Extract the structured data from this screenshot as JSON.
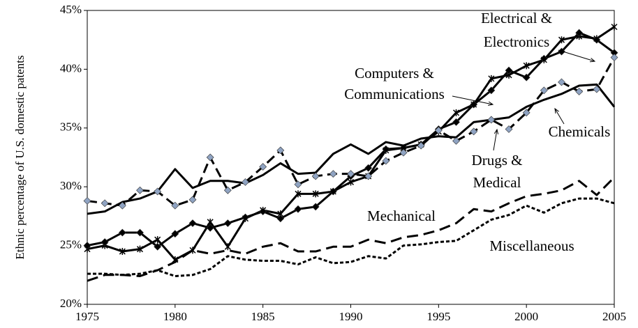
{
  "chart_data": {
    "type": "line",
    "y_label": "Ethnic percentage of U.S. domestic patents",
    "x": [
      1975,
      1976,
      1977,
      1978,
      1979,
      1980,
      1981,
      1982,
      1983,
      1984,
      1985,
      1986,
      1987,
      1988,
      1989,
      1990,
      1991,
      1992,
      1993,
      1994,
      1995,
      1996,
      1997,
      1998,
      1999,
      2000,
      2001,
      2002,
      2003,
      2004,
      2005
    ],
    "xlim": [
      1975,
      2005
    ],
    "xticks": [
      1975,
      1980,
      1985,
      1990,
      1995,
      2000,
      2005
    ],
    "ylim": [
      20,
      45
    ],
    "yticks": [
      {
        "value": 20,
        "label": "20%"
      },
      {
        "value": 25,
        "label": "25%"
      },
      {
        "value": 30,
        "label": "30%"
      },
      {
        "value": 35,
        "label": "35%"
      },
      {
        "value": 40,
        "label": "40%"
      },
      {
        "value": 45,
        "label": "45%"
      }
    ],
    "series": [
      {
        "label": [
          "Electrical &",
          "Electronics"
        ],
        "color": "#000000",
        "dash": "none",
        "marker": "x",
        "marker_color": "#000000",
        "values": [
          24.7,
          25.0,
          24.5,
          24.7,
          25.5,
          23.8,
          24.6,
          27.0,
          24.9,
          27.3,
          28.0,
          27.7,
          29.4,
          29.4,
          29.6,
          30.4,
          30.9,
          33.1,
          33.3,
          33.6,
          34.7,
          36.3,
          37.0,
          39.2,
          39.5,
          40.3,
          40.8,
          42.5,
          42.8,
          42.6,
          43.6
        ]
      },
      {
        "label": [
          "Computers &",
          "Communications"
        ],
        "color": "#000000",
        "dash": "none",
        "marker": "diamond",
        "marker_color": "#000000",
        "values": [
          25.0,
          25.3,
          26.1,
          26.1,
          24.9,
          26.0,
          26.9,
          26.5,
          26.9,
          27.4,
          27.9,
          27.3,
          28.1,
          28.3,
          29.6,
          30.9,
          31.6,
          33.2,
          33.3,
          33.6,
          34.9,
          35.5,
          37.0,
          38.2,
          39.9,
          39.3,
          40.9,
          41.5,
          43.1,
          42.5,
          41.4
        ]
      },
      {
        "label": [
          "Chemicals"
        ],
        "color": "#000000",
        "dash": "none",
        "marker": null,
        "marker_color": "#000000",
        "values": [
          27.7,
          27.9,
          28.7,
          29.0,
          29.6,
          31.5,
          29.9,
          30.5,
          30.5,
          30.3,
          31.0,
          32.0,
          31.1,
          31.2,
          32.8,
          33.6,
          32.8,
          33.8,
          33.5,
          34.1,
          34.3,
          34.2,
          35.5,
          35.7,
          35.9,
          36.8,
          37.4,
          37.9,
          38.6,
          38.7,
          36.8
        ]
      },
      {
        "label": [
          "Drugs &",
          "Medical"
        ],
        "color": "#000000",
        "dash": "14 7",
        "marker": "diamond",
        "marker_color": "#8fa3c2",
        "values": [
          28.8,
          28.6,
          28.4,
          29.7,
          29.6,
          28.4,
          28.9,
          32.5,
          29.7,
          30.4,
          31.7,
          33.1,
          30.2,
          30.9,
          31.1,
          31.1,
          30.9,
          32.2,
          32.9,
          33.5,
          34.8,
          33.9,
          34.7,
          35.7,
          34.9,
          36.3,
          38.2,
          38.9,
          38.1,
          38.3,
          41.0
        ]
      },
      {
        "label": [
          "Mechanical"
        ],
        "color": "#000000",
        "dash": "16 8",
        "marker": null,
        "marker_color": "#000000",
        "values": [
          22.0,
          22.5,
          22.5,
          22.4,
          22.9,
          23.6,
          24.6,
          24.3,
          24.6,
          24.3,
          24.9,
          25.2,
          24.5,
          24.5,
          24.9,
          24.9,
          25.5,
          25.2,
          25.7,
          25.9,
          26.3,
          26.9,
          28.1,
          27.9,
          28.6,
          29.2,
          29.4,
          29.7,
          30.5,
          29.3,
          30.8
        ]
      },
      {
        "label": [
          "Miscellaneous"
        ],
        "color": "#000000",
        "dash": "5 3",
        "marker": null,
        "marker_color": "#000000",
        "values": [
          22.6,
          22.6,
          22.5,
          22.6,
          22.9,
          22.4,
          22.5,
          23.0,
          24.1,
          23.8,
          23.7,
          23.7,
          23.4,
          24.0,
          23.5,
          23.6,
          24.1,
          23.9,
          25.0,
          25.1,
          25.3,
          25.4,
          26.3,
          27.2,
          27.6,
          28.4,
          27.8,
          28.6,
          29.0,
          29.0,
          28.6
        ]
      }
    ]
  }
}
